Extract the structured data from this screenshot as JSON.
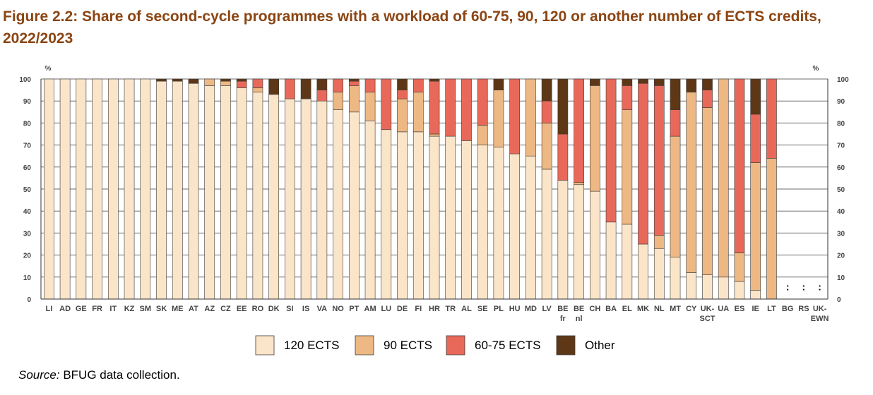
{
  "figure_title": "Figure 2.2: Share of second-cycle programmes with a workload of 60-75, 90, 120 or another number of ECTS credits, 2022/2023",
  "source": {
    "label": "Source:",
    "text": " BFUG data collection."
  },
  "colors": {
    "120 ECTS": "#FBE5C8",
    "90 ECTS": "#EDB883",
    "60-75 ECTS": "#E8695A",
    "Other": "#5E3716"
  },
  "chart_data": {
    "type": "bar",
    "stacked": true,
    "ylabel_left": "%",
    "ylabel_right": "%",
    "ylim": [
      0,
      100
    ],
    "yticks": [
      0,
      10,
      20,
      30,
      40,
      50,
      60,
      70,
      80,
      90,
      100
    ],
    "grid": true,
    "legend_position": "bottom",
    "categories": [
      "LI",
      "AD",
      "GE",
      "FR",
      "IT",
      "KZ",
      "SM",
      "SK",
      "ME",
      "AT",
      "AZ",
      "CZ",
      "EE",
      "RO",
      "DK",
      "SI",
      "IS",
      "VA",
      "NO",
      "PT",
      "AM",
      "LU",
      "DE",
      "FI",
      "HR",
      "TR",
      "AL",
      "SE",
      "PL",
      "HU",
      "MD",
      "LV",
      "BE fr",
      "BE nl",
      "CH",
      "BA",
      "EL",
      "MK",
      "NL",
      "MT",
      "CY",
      "UK-SCT",
      "UA",
      "ES",
      "IE",
      "LT",
      "BG",
      "RS",
      "UK-EWN"
    ],
    "not_available_label": ":",
    "not_available": [
      "BG",
      "RS",
      "UK-EWN"
    ],
    "series": [
      {
        "name": "120 ECTS",
        "values": [
          100,
          100,
          100,
          100,
          100,
          100,
          100,
          99,
          99,
          98,
          97,
          97,
          96,
          94,
          93,
          91,
          91,
          90,
          86,
          85,
          81,
          77,
          76,
          76,
          74,
          74,
          72,
          70,
          69,
          66,
          65,
          59,
          54,
          52,
          49,
          35,
          34,
          25,
          23,
          19,
          12,
          11,
          10,
          8,
          4,
          0,
          null,
          null,
          null
        ]
      },
      {
        "name": "90 ECTS",
        "values": [
          0,
          0,
          0,
          0,
          0,
          0,
          0,
          0,
          0,
          0,
          3,
          2,
          0,
          2,
          0,
          0,
          0,
          0,
          8,
          12,
          13,
          0,
          15,
          18,
          1,
          0,
          0,
          9,
          26,
          0,
          35,
          21,
          0,
          1,
          48,
          0,
          52,
          0,
          6,
          55,
          82,
          76,
          90,
          13,
          58,
          64,
          null,
          null,
          null
        ]
      },
      {
        "name": "60-75 ECTS",
        "values": [
          0,
          0,
          0,
          0,
          0,
          0,
          0,
          0,
          0,
          0,
          0,
          0,
          3,
          4,
          0,
          9,
          0,
          5,
          6,
          2,
          6,
          23,
          4,
          6,
          24,
          26,
          28,
          21,
          0,
          34,
          0,
          10,
          21,
          47,
          0,
          65,
          11,
          73,
          68,
          12,
          0,
          8,
          0,
          79,
          22,
          36,
          null,
          null,
          null
        ]
      },
      {
        "name": "Other",
        "values": [
          0,
          0,
          0,
          0,
          0,
          0,
          0,
          1,
          1,
          2,
          0,
          1,
          1,
          0,
          7,
          0,
          9,
          5,
          0,
          1,
          0,
          0,
          5,
          0,
          1,
          0,
          0,
          0,
          5,
          0,
          0,
          10,
          25,
          0,
          3,
          0,
          3,
          2,
          3,
          14,
          6,
          5,
          0,
          0,
          16,
          0,
          null,
          null,
          null
        ]
      }
    ]
  }
}
